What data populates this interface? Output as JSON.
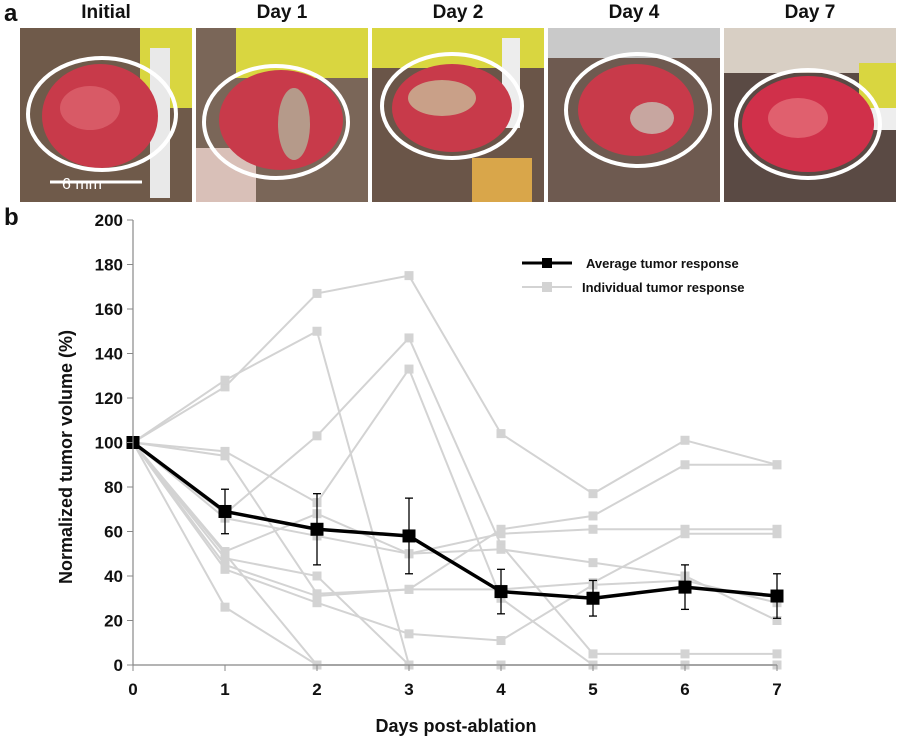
{
  "panels": {
    "a_label": "a",
    "b_label": "b"
  },
  "photos": [
    {
      "title": "Initial"
    },
    {
      "title": "Day 1"
    },
    {
      "title": "Day 2"
    },
    {
      "title": "Day 4"
    },
    {
      "title": "Day 7"
    }
  ],
  "scale_bar": {
    "label": "6 mm"
  },
  "colors": {
    "average": "#000000",
    "individual": "#d3d3d3",
    "tissue": "#c83a4a",
    "ring": "#ffffff"
  },
  "chart_data": {
    "type": "line",
    "xlabel": "Days post-ablation",
    "ylabel": "Normalized tumor volume (%)",
    "x": [
      0,
      1,
      2,
      3,
      4,
      5,
      6,
      7
    ],
    "xlim": [
      0,
      7
    ],
    "ylim": [
      0,
      200
    ],
    "xticks": [
      "0",
      "1",
      "2",
      "3",
      "4",
      "5",
      "6",
      "7"
    ],
    "yticks": [
      "0",
      "20",
      "40",
      "60",
      "80",
      "100",
      "120",
      "140",
      "160",
      "180",
      "200"
    ],
    "legend": {
      "position": "top-right",
      "entries": [
        "Average tumor response",
        "Individual tumor response"
      ]
    },
    "average": {
      "name": "Average tumor response",
      "values": [
        100,
        69,
        61,
        58,
        33,
        30,
        35,
        31
      ],
      "errors": [
        0,
        10,
        16,
        17,
        10,
        8,
        10,
        10
      ]
    },
    "individual": [
      {
        "values": [
          100,
          125,
          167,
          175,
          104,
          77,
          101,
          90
        ]
      },
      {
        "values": [
          100,
          128,
          150,
          0,
          0,
          0,
          0,
          0
        ]
      },
      {
        "values": [
          100,
          96,
          73,
          133,
          30,
          0,
          0,
          0
        ]
      },
      {
        "values": [
          100,
          94,
          32,
          34,
          61,
          67,
          90,
          90
        ]
      },
      {
        "values": [
          100,
          68,
          103,
          147,
          54,
          5,
          5,
          5
        ]
      },
      {
        "values": [
          100,
          66,
          58,
          50,
          59,
          61,
          61,
          61
        ]
      },
      {
        "values": [
          100,
          51,
          68,
          50,
          52,
          46,
          40,
          20
        ]
      },
      {
        "values": [
          100,
          48,
          40,
          0,
          0,
          0,
          0,
          0
        ]
      },
      {
        "values": [
          100,
          45,
          31,
          34,
          34,
          37,
          59,
          59
        ]
      },
      {
        "values": [
          100,
          43,
          28,
          14,
          11,
          36,
          38,
          28
        ]
      },
      {
        "values": [
          100,
          26,
          0,
          0,
          0,
          0,
          0,
          0
        ]
      },
      {
        "values": [
          100,
          50,
          0,
          0,
          0,
          0,
          0,
          0
        ]
      }
    ]
  }
}
